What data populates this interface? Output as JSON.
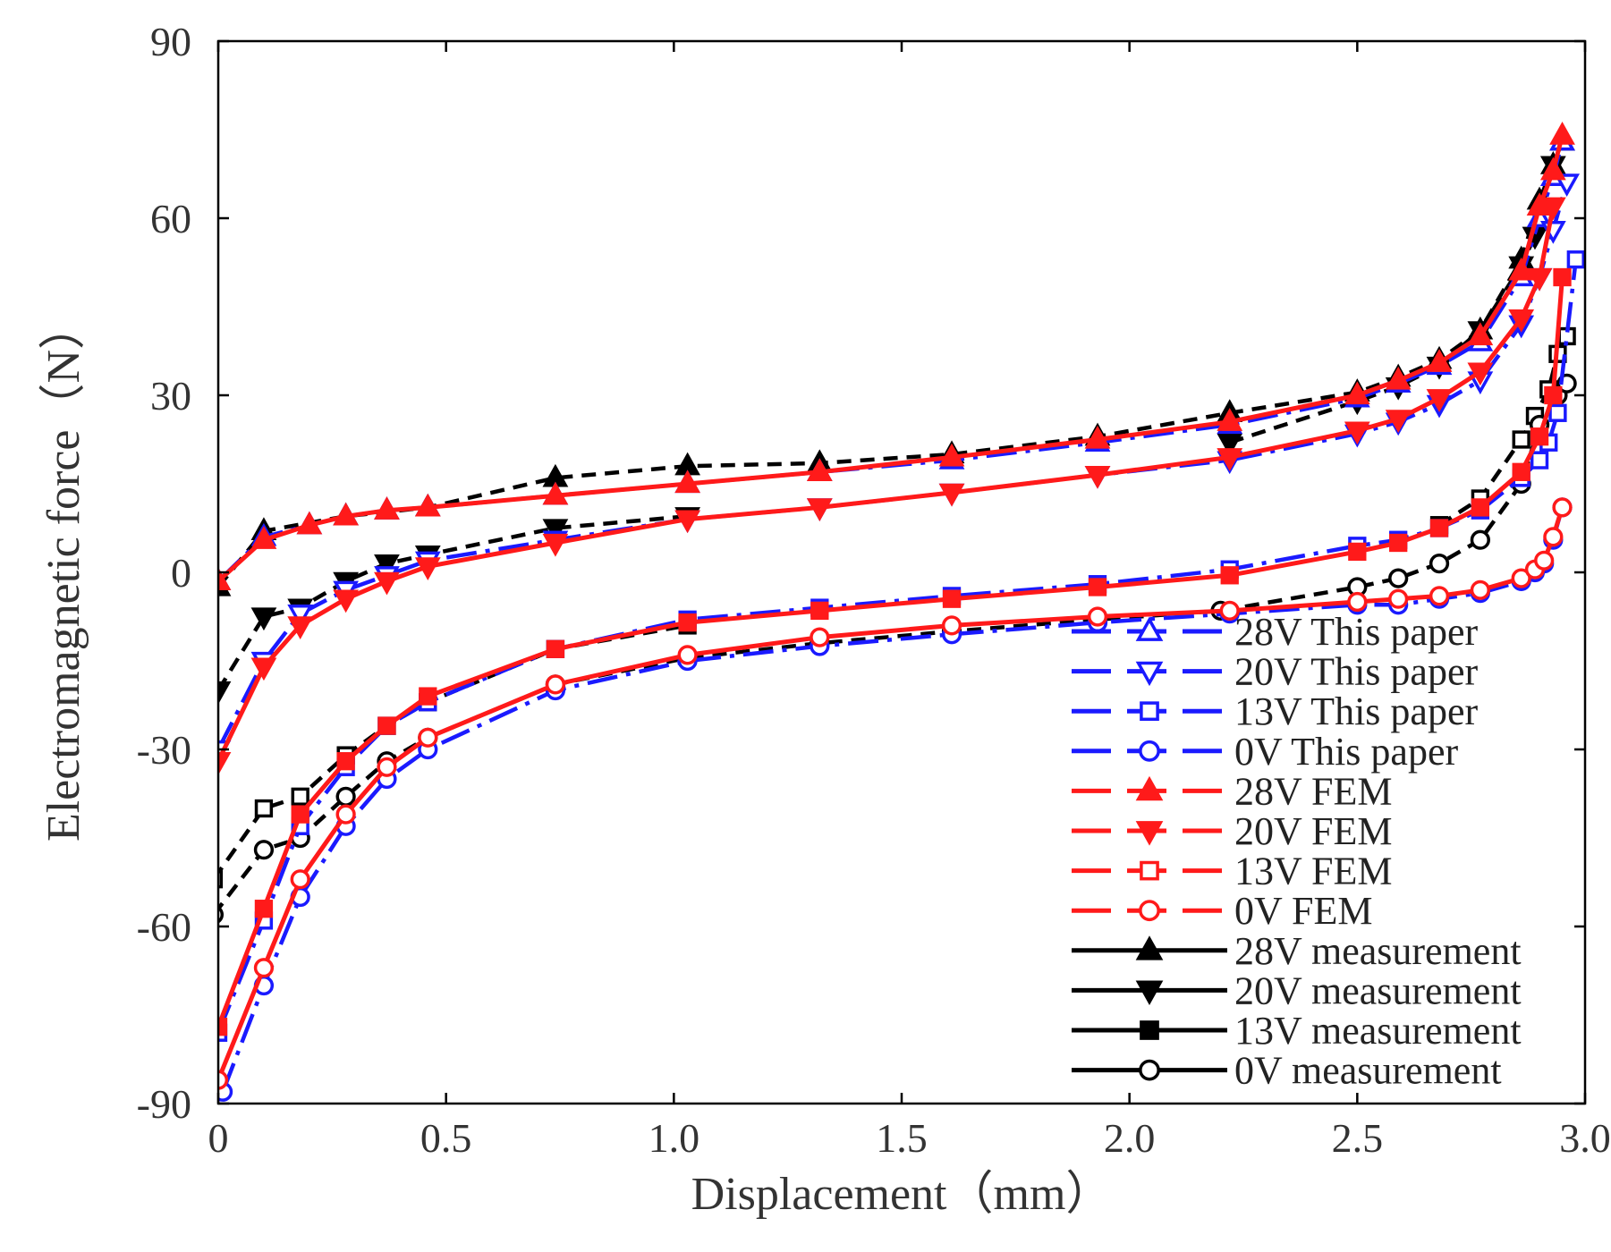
{
  "chart_data": {
    "type": "line",
    "xlabel": "Displacement（mm）",
    "ylabel": "Electromagnetic force（N）",
    "xlim": [
      0,
      3.0
    ],
    "ylim": [
      -90,
      90
    ],
    "xticks": [
      "0",
      "0.5",
      "1.0",
      "1.5",
      "2.0",
      "2.5",
      "3.0"
    ],
    "xtick_values": [
      0,
      0.5,
      1.0,
      1.5,
      2.0,
      2.5,
      3.0
    ],
    "yticks": [
      "90",
      "60",
      "30",
      "0",
      "-30",
      "-60",
      "-90"
    ],
    "ytick_values": [
      90,
      60,
      30,
      0,
      -30,
      -60,
      -90
    ],
    "grid": false,
    "legend_position": "bottom-right",
    "series": [
      {
        "name": "28V This paper",
        "group": "This paper",
        "color": "#1a1aff",
        "dash": "long-dash-dot",
        "marker": "triangle-up",
        "filled": false,
        "segments": [
          {
            "x": [
              0.0,
              0.1,
              0.2,
              0.28,
              0.37,
              0.46,
              0.74,
              1.03,
              1.32,
              1.61,
              1.93,
              2.22,
              2.5,
              2.59,
              2.68,
              2.77,
              2.86,
              2.9,
              2.93,
              2.95
            ],
            "y": [
              -1.5,
              6,
              8,
              9.5,
              10.5,
              11,
              13,
              15,
              17,
              19,
              22,
              25,
              29.5,
              32,
              35,
              39,
              50,
              60,
              67,
              73
            ]
          }
        ]
      },
      {
        "name": "20V This paper",
        "group": "This paper",
        "color": "#1a1aff",
        "dash": "long-dash-dot",
        "marker": "triangle-down",
        "filled": false,
        "segments": [
          {
            "x": [
              0.0,
              0.1,
              0.18,
              0.28,
              0.37,
              0.46,
              0.74,
              1.03,
              1.32,
              1.61,
              1.93,
              2.22,
              2.5,
              2.59,
              2.68,
              2.77,
              2.86,
              2.9,
              2.93,
              2.96
            ],
            "y": [
              -30,
              -15,
              -7,
              -3,
              -0.5,
              2,
              5.5,
              9,
              11,
              13.5,
              16.5,
              19,
              23.5,
              25.5,
              28.5,
              32.5,
              42,
              50,
              58,
              66
            ]
          }
        ]
      },
      {
        "name": "13V This paper",
        "group": "This paper",
        "color": "#1a1aff",
        "dash": "long-dash-dot",
        "marker": "square",
        "filled": false,
        "segments": [
          {
            "x": [
              0.0,
              0.1,
              0.18,
              0.28,
              0.37,
              0.46,
              0.74,
              1.03,
              1.32,
              1.61,
              1.93,
              2.22,
              2.5,
              2.59,
              2.68,
              2.77,
              2.86,
              2.9,
              2.92,
              2.94,
              2.98
            ],
            "y": [
              -78,
              -59,
              -43,
              -33,
              -26,
              -22,
              -13,
              -8,
              -6,
              -4,
              -2,
              0.5,
              4.5,
              5.5,
              7.5,
              10.5,
              16,
              19,
              22,
              27,
              53
            ]
          }
        ]
      },
      {
        "name": "0V This paper",
        "group": "This paper",
        "color": "#1a1aff",
        "dash": "long-dash-dot",
        "marker": "circle",
        "filled": false,
        "segments": [
          {
            "x": [
              0.01,
              0.1,
              0.18,
              0.28,
              0.37,
              0.46,
              0.74,
              1.03,
              1.32,
              1.61,
              1.93,
              2.22,
              2.5,
              2.59,
              2.68,
              2.77,
              2.86,
              2.89,
              2.91,
              2.93,
              2.95
            ],
            "y": [
              -88,
              -70,
              -55,
              -43,
              -35,
              -30,
              -20,
              -15,
              -12.5,
              -10.5,
              -8.5,
              -7,
              -5.5,
              -5.5,
              -4.5,
              -3.5,
              -1.5,
              0,
              1.5,
              5.5,
              11
            ]
          }
        ]
      },
      {
        "name": "28V FEM",
        "group": "FEM",
        "color": "#ff1a1a",
        "dash": "solid",
        "marker": "triangle-up",
        "filled": true,
        "segments": [
          {
            "x": [
              0.0,
              0.1,
              0.2,
              0.28,
              0.37,
              0.46,
              0.74,
              1.03,
              1.32,
              1.61,
              1.93,
              2.22,
              2.5,
              2.59,
              2.68,
              2.77,
              2.86,
              2.9,
              2.93,
              2.95
            ],
            "y": [
              -1.5,
              5.5,
              8,
              9.5,
              10.5,
              11,
              13,
              15,
              17,
              19.5,
              22.5,
              25.5,
              30,
              32.5,
              35.5,
              40,
              51,
              62,
              68,
              74
            ]
          }
        ]
      },
      {
        "name": "20V FEM",
        "group": "FEM",
        "color": "#ff1a1a",
        "dash": "solid",
        "marker": "triangle-down",
        "filled": true,
        "segments": [
          {
            "x": [
              0.0,
              0.1,
              0.18,
              0.28,
              0.37,
              0.46,
              0.74,
              1.03,
              1.32,
              1.61,
              1.93,
              2.22,
              2.5,
              2.59,
              2.68,
              2.77,
              2.86,
              2.9,
              2.93
            ],
            "y": [
              -32,
              -16,
              -9,
              -4.5,
              -1.5,
              1,
              5,
              9,
              11,
              13.5,
              16.5,
              19.5,
              24,
              26,
              29.5,
              34,
              43,
              50,
              62
            ]
          }
        ]
      },
      {
        "name": "13V FEM",
        "group": "FEM",
        "color": "#ff1a1a",
        "dash": "solid",
        "marker": "square",
        "filled": true,
        "segments": [
          {
            "x": [
              0.0,
              0.1,
              0.18,
              0.28,
              0.37,
              0.46,
              0.74,
              1.03,
              1.32,
              1.61,
              1.93,
              2.22,
              2.5,
              2.59,
              2.68,
              2.77,
              2.86,
              2.9,
              2.93,
              2.95
            ],
            "y": [
              -77,
              -57,
              -41,
              -32,
              -26,
              -21,
              -13,
              -8.5,
              -6.5,
              -4.5,
              -2.5,
              -0.5,
              3.5,
              5,
              7.5,
              11,
              17,
              23,
              30,
              50
            ]
          }
        ]
      },
      {
        "name": "0V FEM",
        "group": "FEM",
        "color": "#ff1a1a",
        "dash": "solid",
        "marker": "circle",
        "filled": false,
        "segments": [
          {
            "x": [
              0.0,
              0.1,
              0.18,
              0.28,
              0.37,
              0.46,
              0.74,
              1.03,
              1.32,
              1.61,
              1.93,
              2.22,
              2.5,
              2.59,
              2.68,
              2.77,
              2.86,
              2.89,
              2.91,
              2.93,
              2.95
            ],
            "y": [
              -86,
              -67,
              -52,
              -41,
              -33,
              -28,
              -19,
              -14,
              -11,
              -9,
              -7.5,
              -6.5,
              -5,
              -4.5,
              -4,
              -3,
              -1,
              0.5,
              2,
              6,
              11
            ]
          }
        ]
      },
      {
        "name": "28V measurement",
        "group": "measurement",
        "color": "#000000",
        "dash": "short-dash",
        "marker": "triangle-up",
        "filled": true,
        "segments": [
          {
            "x": [
              0.0,
              0.1,
              0.28,
              0.46,
              0.74,
              1.03,
              1.32,
              1.61,
              1.93,
              2.22,
              2.5,
              2.59,
              2.68,
              2.77,
              2.86,
              2.9,
              2.93,
              2.95
            ],
            "y": [
              -2.5,
              7,
              9.5,
              11,
              16,
              18,
              18.5,
              20,
              23,
              27,
              30.5,
              33,
              36,
              41,
              53,
              63,
              69,
              73
            ]
          }
        ]
      },
      {
        "name": "20V measurement",
        "group": "measurement",
        "color": "#000000",
        "dash": "short-dash",
        "marker": "triangle-down",
        "filled": true,
        "segments": [
          {
            "x": [
              0.0,
              0.1,
              0.18,
              0.28,
              0.37,
              0.46,
              0.74,
              1.03
            ],
            "y": [
              -20,
              -7.5,
              -6,
              -1.5,
              1.5,
              3,
              7.5,
              9.5
            ]
          },
          {
            "x": [
              2.22,
              2.5,
              2.59,
              2.68,
              2.77,
              2.86,
              2.89,
              2.93
            ],
            "y": [
              22,
              29,
              31.5,
              35,
              41,
              52,
              57,
              69
            ]
          }
        ]
      },
      {
        "name": "13V measurement",
        "group": "measurement",
        "color": "#000000",
        "dash": "short-dash",
        "marker": "square",
        "filled": false,
        "segments": [
          {
            "x": [
              -0.01,
              0.1,
              0.18,
              0.28,
              0.37,
              0.46,
              0.74,
              1.03
            ],
            "y": [
              -52,
              -40,
              -38,
              -31,
              -26,
              -22,
              -13,
              -9
            ]
          },
          {
            "x": [
              2.68,
              2.77,
              2.86,
              2.89,
              2.92,
              2.94,
              2.96
            ],
            "y": [
              8,
              12.5,
              22.5,
              26.5,
              31,
              37,
              40
            ]
          }
        ]
      },
      {
        "name": "0V measurement",
        "group": "measurement",
        "color": "#000000",
        "dash": "short-dash",
        "marker": "circle",
        "filled": false,
        "segments": [
          {
            "x": [
              -0.01,
              0.1,
              0.18,
              0.28,
              0.37,
              0.46,
              0.74,
              1.03,
              1.32,
              1.61,
              1.93,
              2.2,
              2.5,
              2.59,
              2.68,
              2.77,
              2.86,
              2.9,
              2.94,
              2.96
            ],
            "y": [
              -58,
              -47,
              -45,
              -38,
              -32,
              -28,
              -19,
              -14.5,
              -12,
              -10,
              -8,
              -6.5,
              -2.5,
              -1,
              1.5,
              5.5,
              15,
              25,
              30,
              32
            ]
          }
        ]
      }
    ]
  },
  "legend": {
    "entries": [
      {
        "label": "28V This paper",
        "color": "#1a1aff",
        "marker": "triangle-up",
        "filled": false,
        "style": "dash"
      },
      {
        "label": "20V This paper",
        "color": "#1a1aff",
        "marker": "triangle-down",
        "filled": false,
        "style": "dash"
      },
      {
        "label": "13V This paper",
        "color": "#1a1aff",
        "marker": "square",
        "filled": false,
        "style": "dash"
      },
      {
        "label": "0V This paper",
        "color": "#1a1aff",
        "marker": "circle",
        "filled": false,
        "style": "dash"
      },
      {
        "label": "28V FEM",
        "color": "#ff1a1a",
        "marker": "triangle-up",
        "filled": true,
        "style": "dash"
      },
      {
        "label": "20V FEM",
        "color": "#ff1a1a",
        "marker": "triangle-down",
        "filled": true,
        "style": "dash"
      },
      {
        "label": "13V FEM",
        "color": "#ff1a1a",
        "marker": "square",
        "filled": false,
        "style": "dash"
      },
      {
        "label": "0V FEM",
        "color": "#ff1a1a",
        "marker": "circle",
        "filled": false,
        "style": "dash"
      },
      {
        "label": "28V measurement",
        "color": "#000000",
        "marker": "triangle-up",
        "filled": true,
        "style": "solid"
      },
      {
        "label": "20V measurement",
        "color": "#000000",
        "marker": "triangle-down",
        "filled": true,
        "style": "solid"
      },
      {
        "label": "13V measurement",
        "color": "#000000",
        "marker": "square",
        "filled": true,
        "style": "solid"
      },
      {
        "label": "0V measurement",
        "color": "#000000",
        "marker": "circle",
        "filled": false,
        "style": "solid"
      }
    ]
  }
}
